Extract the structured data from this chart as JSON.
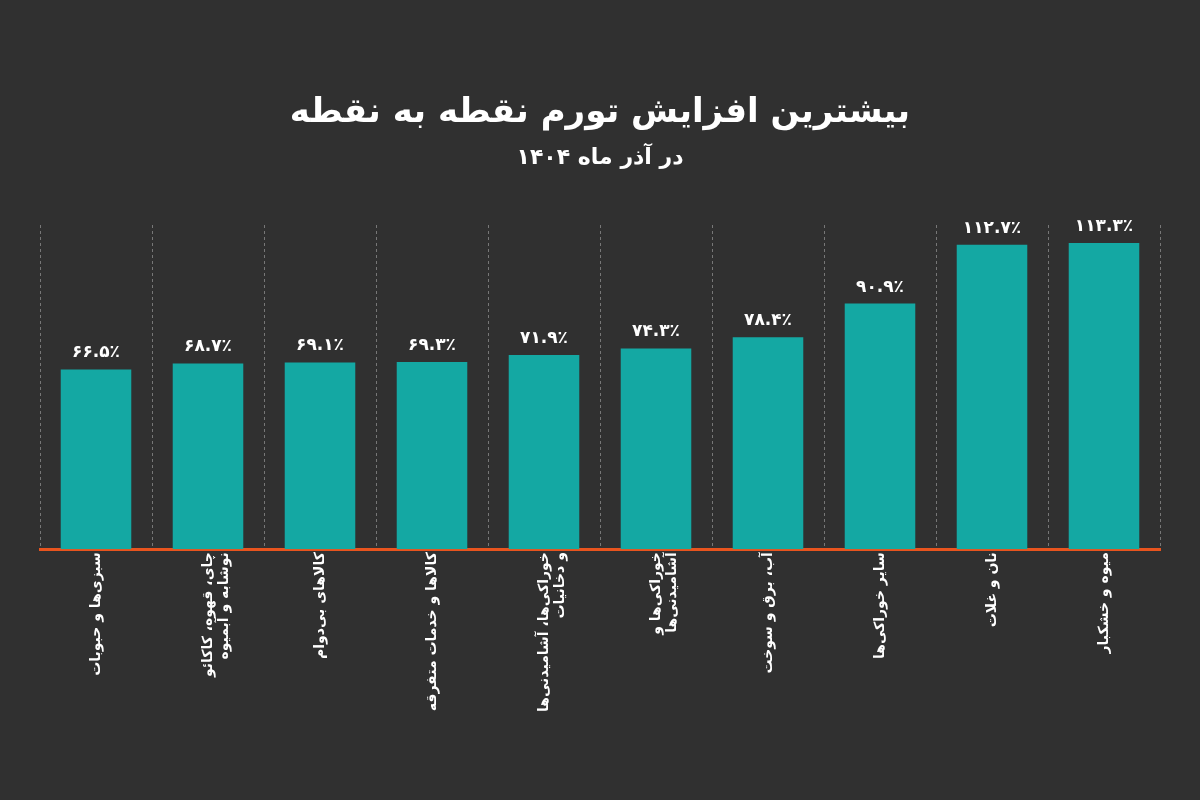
{
  "chart_data": {
    "type": "bar",
    "title": "بیشترین افزایش تورم نقطه به نقطه",
    "subtitle": "در آذر ماه ۱۴۰۴",
    "categories": [
      "سبزی‌ها و حبوبات",
      "چای، قهوه، کاکائو نوشابه و آبمیوه",
      "کالاهای بی‌دوام",
      "کالاها و خدمات متفرقه",
      "خوراکی‌ها، آشامیدنی‌ها و دخانیات",
      "خوراکی‌ها و آشامیدنی‌ها",
      "آب، برق و سوخت",
      "سایر خوراکی‌ها",
      "نان و غلات",
      "میوه و خشکبار"
    ],
    "values": [
      66.5,
      68.7,
      69.1,
      69.3,
      71.9,
      74.3,
      78.4,
      90.9,
      112.7,
      113.3
    ],
    "value_labels": [
      "۶۶.۵٪",
      "۶۸.۷٪",
      "۶۹.۱٪",
      "۶۹.۳٪",
      "۷۱.۹٪",
      "۷۴.۳٪",
      "۷۸.۴٪",
      "۹۰.۹٪",
      "۱۱۲.۷٪",
      "۱۱۳.۳٪"
    ],
    "color": "#14a8a3",
    "ylim": [
      0,
      120
    ],
    "tick_labels": "x",
    "grid": "x"
  }
}
